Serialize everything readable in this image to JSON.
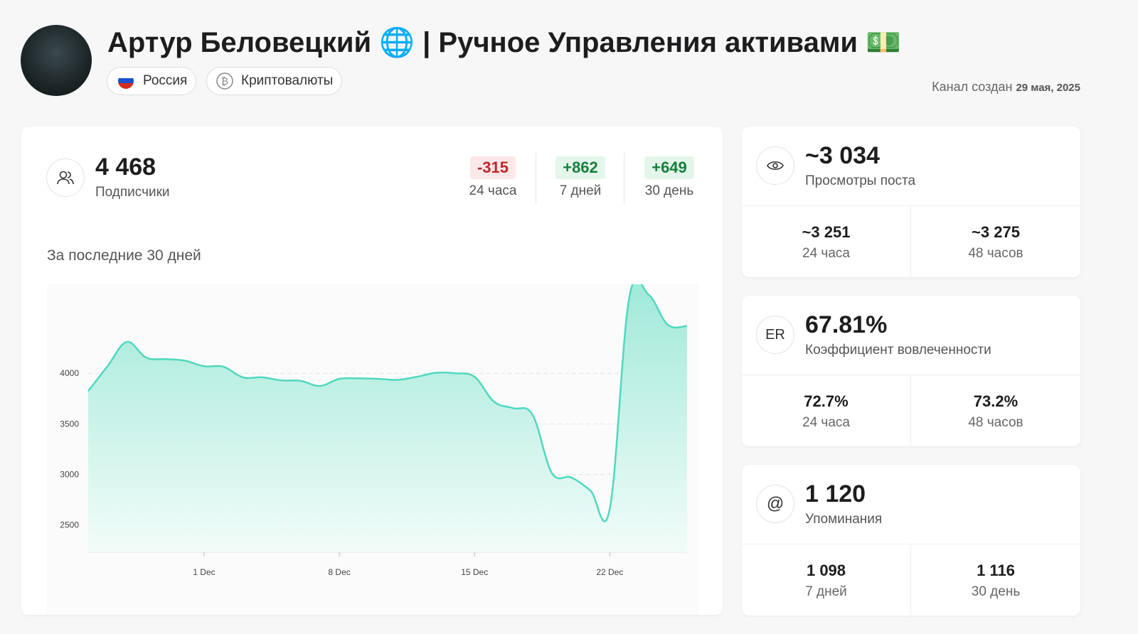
{
  "header": {
    "title": "Артур Беловецкий 🌐 | Ручное Управления активами 💵",
    "tags": [
      {
        "label": "Россия"
      },
      {
        "label": "Криптовалюты"
      }
    ],
    "created_label": "Канал создан",
    "created_date": "29 мая, 2025"
  },
  "subscribers": {
    "value": "4 468",
    "label": "Подписчики",
    "changes": [
      {
        "value": "-315",
        "label": "24 часа"
      },
      {
        "value": "+862",
        "label": "7 дней"
      },
      {
        "value": "+649",
        "label": "30 день"
      }
    ]
  },
  "chart_data": {
    "type": "area",
    "title": "За последние 30 дней",
    "x": [
      null,
      null,
      null,
      null,
      null,
      null,
      "1 Dec",
      null,
      null,
      null,
      null,
      null,
      null,
      "8 Dec",
      null,
      null,
      null,
      null,
      null,
      null,
      "15 Dec",
      null,
      null,
      null,
      null,
      null,
      null,
      "22 Dec",
      null,
      null,
      null,
      null
    ],
    "values": [
      3824,
      4070,
      4310,
      4155,
      4140,
      4125,
      4070,
      4065,
      3960,
      3960,
      3930,
      3925,
      3875,
      3945,
      3950,
      3945,
      3935,
      3965,
      4005,
      4000,
      3965,
      3720,
      3655,
      3590,
      3015,
      2970,
      2840,
      2660,
      4740,
      4780,
      4480,
      4468
    ],
    "color": "#4fd8bf",
    "ylim": [
      2230,
      4880
    ],
    "yticks": [
      2500,
      3000,
      3500,
      4000
    ],
    "grid": true
  },
  "cards": [
    {
      "icon": "",
      "value": "~3 034",
      "label": "Просмотры поста",
      "stats": [
        {
          "value": "~3 251",
          "label": "24 часа"
        },
        {
          "value": "~3 275",
          "label": "48 часов"
        }
      ]
    },
    {
      "icon": "ER",
      "value": "67.81%",
      "label": "Коэффициент вовлеченности",
      "stats": [
        {
          "value": "72.7%",
          "label": "24 часа"
        },
        {
          "value": "73.2%",
          "label": "48 часов"
        }
      ]
    },
    {
      "icon": "@",
      "value": "1 120",
      "label": "Упоминания",
      "stats": [
        {
          "value": "1 098",
          "label": "7 дней"
        },
        {
          "value": "1 116",
          "label": "30 день"
        }
      ]
    }
  ]
}
